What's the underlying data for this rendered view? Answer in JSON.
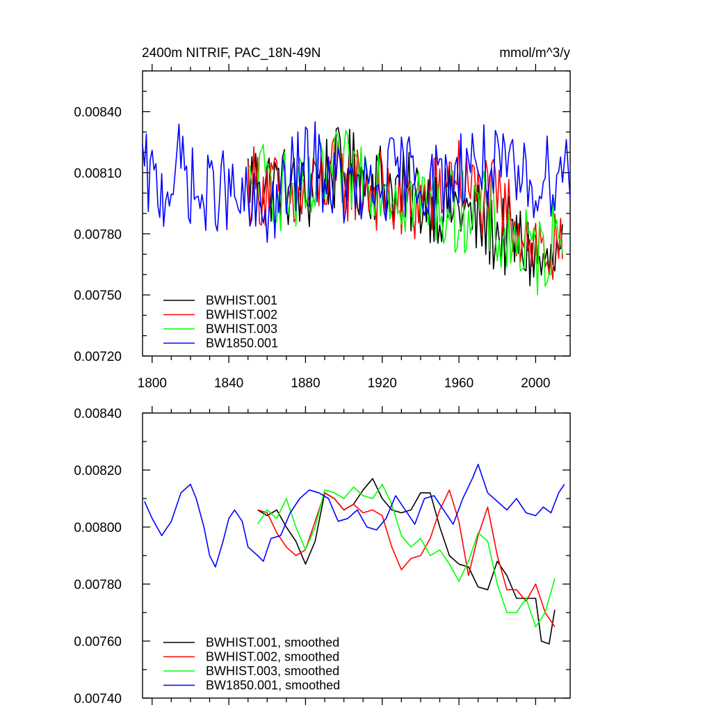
{
  "colors": {
    "black": "#000000",
    "red": "#ff0000",
    "green": "#00ff00",
    "blue": "#0000ff"
  },
  "chart_data": [
    {
      "type": "line",
      "title": "2400m NITRIF, PAC_18N-49N",
      "units": "mmol/m^3/y",
      "xlim": [
        1795,
        2018
      ],
      "ylim": [
        0.0072,
        0.0086
      ],
      "yticks": [
        "0.00720",
        "0.00750",
        "0.00780",
        "0.00810",
        "0.00840"
      ],
      "xticks": [
        "1800",
        "1840",
        "1880",
        "1920",
        "1960",
        "2000"
      ],
      "legend": [
        "BWHIST.001",
        "BWHIST.002",
        "BWHIST.003",
        "BW1850.001"
      ],
      "legend_placement": "bottom-left",
      "series": [
        {
          "name": "BWHIST.001",
          "color": "black",
          "x_start": 1850,
          "x_end": 2014,
          "anchors": [
            [
              1850,
              0.00808
            ],
            [
              1860,
              0.00805
            ],
            [
              1870,
              0.00803
            ],
            [
              1880,
              0.00798
            ],
            [
              1890,
              0.0081
            ],
            [
              1900,
              0.00812
            ],
            [
              1910,
              0.00808
            ],
            [
              1920,
              0.00806
            ],
            [
              1930,
              0.008
            ],
            [
              1940,
              0.00798
            ],
            [
              1950,
              0.00795
            ],
            [
              1960,
              0.00792
            ],
            [
              1970,
              0.00785
            ],
            [
              1980,
              0.0078
            ],
            [
              1990,
              0.00776
            ],
            [
              2000,
              0.00768
            ],
            [
              2005,
              0.00762
            ],
            [
              2014,
              0.00768
            ]
          ]
        },
        {
          "name": "BWHIST.002",
          "color": "red",
          "x_start": 1850,
          "x_end": 2014,
          "anchors": [
            [
              1850,
              0.00805
            ],
            [
              1860,
              0.00803
            ],
            [
              1870,
              0.00796
            ],
            [
              1880,
              0.00795
            ],
            [
              1890,
              0.00808
            ],
            [
              1900,
              0.00806
            ],
            [
              1910,
              0.00805
            ],
            [
              1920,
              0.008
            ],
            [
              1930,
              0.00792
            ],
            [
              1940,
              0.00795
            ],
            [
              1950,
              0.008
            ],
            [
              1958,
              0.00812
            ],
            [
              1965,
              0.008
            ],
            [
              1975,
              0.00798
            ],
            [
              1985,
              0.0079
            ],
            [
              1995,
              0.00782
            ],
            [
              2005,
              0.0077
            ],
            [
              2014,
              0.00768
            ]
          ]
        },
        {
          "name": "BWHIST.003",
          "color": "green",
          "x_start": 1850,
          "x_end": 2014,
          "anchors": [
            [
              1850,
              0.008
            ],
            [
              1860,
              0.00806
            ],
            [
              1870,
              0.008
            ],
            [
              1880,
              0.00795
            ],
            [
              1890,
              0.00808
            ],
            [
              1900,
              0.0081
            ],
            [
              1910,
              0.00812
            ],
            [
              1920,
              0.00808
            ],
            [
              1930,
              0.008
            ],
            [
              1940,
              0.00796
            ],
            [
              1950,
              0.00793
            ],
            [
              1960,
              0.0079
            ],
            [
              1970,
              0.00795
            ],
            [
              1980,
              0.0078
            ],
            [
              1990,
              0.00775
            ],
            [
              2000,
              0.00768
            ],
            [
              2008,
              0.00775
            ],
            [
              2014,
              0.00788
            ]
          ]
        },
        {
          "name": "BW1850.001",
          "color": "blue",
          "x_start": 1795,
          "x_end": 2018,
          "anchors": [
            [
              1795,
              0.0081
            ],
            [
              1805,
              0.008
            ],
            [
              1815,
              0.00815
            ],
            [
              1825,
              0.00795
            ],
            [
              1835,
              0.00803
            ],
            [
              1845,
              0.00795
            ],
            [
              1855,
              0.0079
            ],
            [
              1865,
              0.00795
            ],
            [
              1875,
              0.0081
            ],
            [
              1885,
              0.00815
            ],
            [
              1895,
              0.00805
            ],
            [
              1905,
              0.008
            ],
            [
              1915,
              0.00798
            ],
            [
              1925,
              0.00808
            ],
            [
              1935,
              0.0081
            ],
            [
              1945,
              0.00805
            ],
            [
              1955,
              0.00805
            ],
            [
              1965,
              0.00818
            ],
            [
              1975,
              0.00812
            ],
            [
              1985,
              0.00808
            ],
            [
              1995,
              0.00805
            ],
            [
              2005,
              0.00808
            ],
            [
              2018,
              0.00815
            ]
          ]
        }
      ]
    },
    {
      "type": "line",
      "title": "",
      "xlim": [
        1795,
        2018
      ],
      "ylim": [
        0.0074,
        0.0084
      ],
      "yticks": [
        "0.00740",
        "0.00760",
        "0.00780",
        "0.00800",
        "0.00820",
        "0.00840"
      ],
      "legend": [
        "BWHIST.001, smoothed",
        "BWHIST.002, smoothed",
        "BWHIST.003, smoothed",
        "BW1850.001, smoothed"
      ],
      "legend_placement": "bottom-left",
      "series": [
        {
          "name": "BWHIST.001, smoothed",
          "color": "black",
          "points": [
            [
              1855,
              0.00806
            ],
            [
              1860,
              0.00804
            ],
            [
              1865,
              0.00806
            ],
            [
              1870,
              0.008
            ],
            [
              1875,
              0.00795
            ],
            [
              1880,
              0.00787
            ],
            [
              1885,
              0.00795
            ],
            [
              1890,
              0.00812
            ],
            [
              1895,
              0.0081
            ],
            [
              1900,
              0.00806
            ],
            [
              1905,
              0.00808
            ],
            [
              1910,
              0.00813
            ],
            [
              1915,
              0.00817
            ],
            [
              1920,
              0.0081
            ],
            [
              1925,
              0.00806
            ],
            [
              1930,
              0.00805
            ],
            [
              1935,
              0.00806
            ],
            [
              1940,
              0.00812
            ],
            [
              1945,
              0.00812
            ],
            [
              1950,
              0.008
            ],
            [
              1955,
              0.0079
            ],
            [
              1960,
              0.00787
            ],
            [
              1965,
              0.00786
            ],
            [
              1970,
              0.00779
            ],
            [
              1975,
              0.00778
            ],
            [
              1980,
              0.00788
            ],
            [
              1985,
              0.00783
            ],
            [
              1990,
              0.00775
            ],
            [
              1995,
              0.00775
            ],
            [
              2000,
              0.00775
            ],
            [
              2003,
              0.0076
            ],
            [
              2007,
              0.00759
            ],
            [
              2010,
              0.00771
            ]
          ]
        },
        {
          "name": "BWHIST.002, smoothed",
          "color": "red",
          "points": [
            [
              1855,
              0.00806
            ],
            [
              1860,
              0.00805
            ],
            [
              1865,
              0.00798
            ],
            [
              1870,
              0.00793
            ],
            [
              1875,
              0.0079
            ],
            [
              1880,
              0.00792
            ],
            [
              1885,
              0.00802
            ],
            [
              1890,
              0.00812
            ],
            [
              1895,
              0.0081
            ],
            [
              1900,
              0.00806
            ],
            [
              1905,
              0.00808
            ],
            [
              1910,
              0.00805
            ],
            [
              1915,
              0.00806
            ],
            [
              1920,
              0.00804
            ],
            [
              1925,
              0.00793
            ],
            [
              1930,
              0.00785
            ],
            [
              1935,
              0.00789
            ],
            [
              1940,
              0.0079
            ],
            [
              1945,
              0.00796
            ],
            [
              1950,
              0.00806
            ],
            [
              1955,
              0.00813
            ],
            [
              1960,
              0.00802
            ],
            [
              1965,
              0.00783
            ],
            [
              1970,
              0.00797
            ],
            [
              1975,
              0.00807
            ],
            [
              1980,
              0.0079
            ],
            [
              1985,
              0.00778
            ],
            [
              1990,
              0.00778
            ],
            [
              1995,
              0.00774
            ],
            [
              2000,
              0.0078
            ],
            [
              2005,
              0.0077
            ],
            [
              2010,
              0.00765
            ]
          ]
        },
        {
          "name": "BWHIST.003, smoothed",
          "color": "green",
          "points": [
            [
              1855,
              0.00801
            ],
            [
              1860,
              0.00806
            ],
            [
              1865,
              0.00803
            ],
            [
              1870,
              0.0081
            ],
            [
              1875,
              0.008
            ],
            [
              1880,
              0.00792
            ],
            [
              1885,
              0.008
            ],
            [
              1890,
              0.00813
            ],
            [
              1895,
              0.00812
            ],
            [
              1900,
              0.0081
            ],
            [
              1905,
              0.00814
            ],
            [
              1910,
              0.00811
            ],
            [
              1915,
              0.0081
            ],
            [
              1920,
              0.00815
            ],
            [
              1925,
              0.00808
            ],
            [
              1930,
              0.00797
            ],
            [
              1935,
              0.00793
            ],
            [
              1940,
              0.00796
            ],
            [
              1945,
              0.0079
            ],
            [
              1950,
              0.00792
            ],
            [
              1955,
              0.00787
            ],
            [
              1960,
              0.00781
            ],
            [
              1965,
              0.00788
            ],
            [
              1970,
              0.00798
            ],
            [
              1975,
              0.00795
            ],
            [
              1980,
              0.0078
            ],
            [
              1985,
              0.0077
            ],
            [
              1990,
              0.0077
            ],
            [
              1995,
              0.00775
            ],
            [
              2000,
              0.00765
            ],
            [
              2005,
              0.0077
            ],
            [
              2010,
              0.00782
            ]
          ]
        },
        {
          "name": "BW1850.001, smoothed",
          "color": "blue",
          "points": [
            [
              1796,
              0.00809
            ],
            [
              1800,
              0.00803
            ],
            [
              1805,
              0.00797
            ],
            [
              1810,
              0.00802
            ],
            [
              1815,
              0.00812
            ],
            [
              1820,
              0.00815
            ],
            [
              1823,
              0.0081
            ],
            [
              1827,
              0.008
            ],
            [
              1830,
              0.0079
            ],
            [
              1833,
              0.00786
            ],
            [
              1837,
              0.00795
            ],
            [
              1840,
              0.00803
            ],
            [
              1843,
              0.00806
            ],
            [
              1847,
              0.00802
            ],
            [
              1850,
              0.00793
            ],
            [
              1855,
              0.0079
            ],
            [
              1858,
              0.00788
            ],
            [
              1862,
              0.00796
            ],
            [
              1867,
              0.00797
            ],
            [
              1872,
              0.00805
            ],
            [
              1877,
              0.0081
            ],
            [
              1882,
              0.00813
            ],
            [
              1887,
              0.00812
            ],
            [
              1892,
              0.0081
            ],
            [
              1897,
              0.00802
            ],
            [
              1902,
              0.00803
            ],
            [
              1907,
              0.00806
            ],
            [
              1912,
              0.008
            ],
            [
              1917,
              0.00799
            ],
            [
              1922,
              0.00803
            ],
            [
              1927,
              0.00811
            ],
            [
              1932,
              0.00806
            ],
            [
              1937,
              0.00801
            ],
            [
              1942,
              0.0081
            ],
            [
              1947,
              0.00811
            ],
            [
              1952,
              0.00806
            ],
            [
              1957,
              0.00801
            ],
            [
              1962,
              0.0081
            ],
            [
              1967,
              0.00817
            ],
            [
              1970,
              0.00822
            ],
            [
              1975,
              0.00812
            ],
            [
              1980,
              0.00809
            ],
            [
              1985,
              0.00806
            ],
            [
              1990,
              0.0081
            ],
            [
              1995,
              0.00805
            ],
            [
              2000,
              0.00804
            ],
            [
              2004,
              0.00807
            ],
            [
              2008,
              0.00805
            ],
            [
              2012,
              0.00812
            ],
            [
              2015,
              0.00815
            ]
          ]
        }
      ]
    }
  ]
}
